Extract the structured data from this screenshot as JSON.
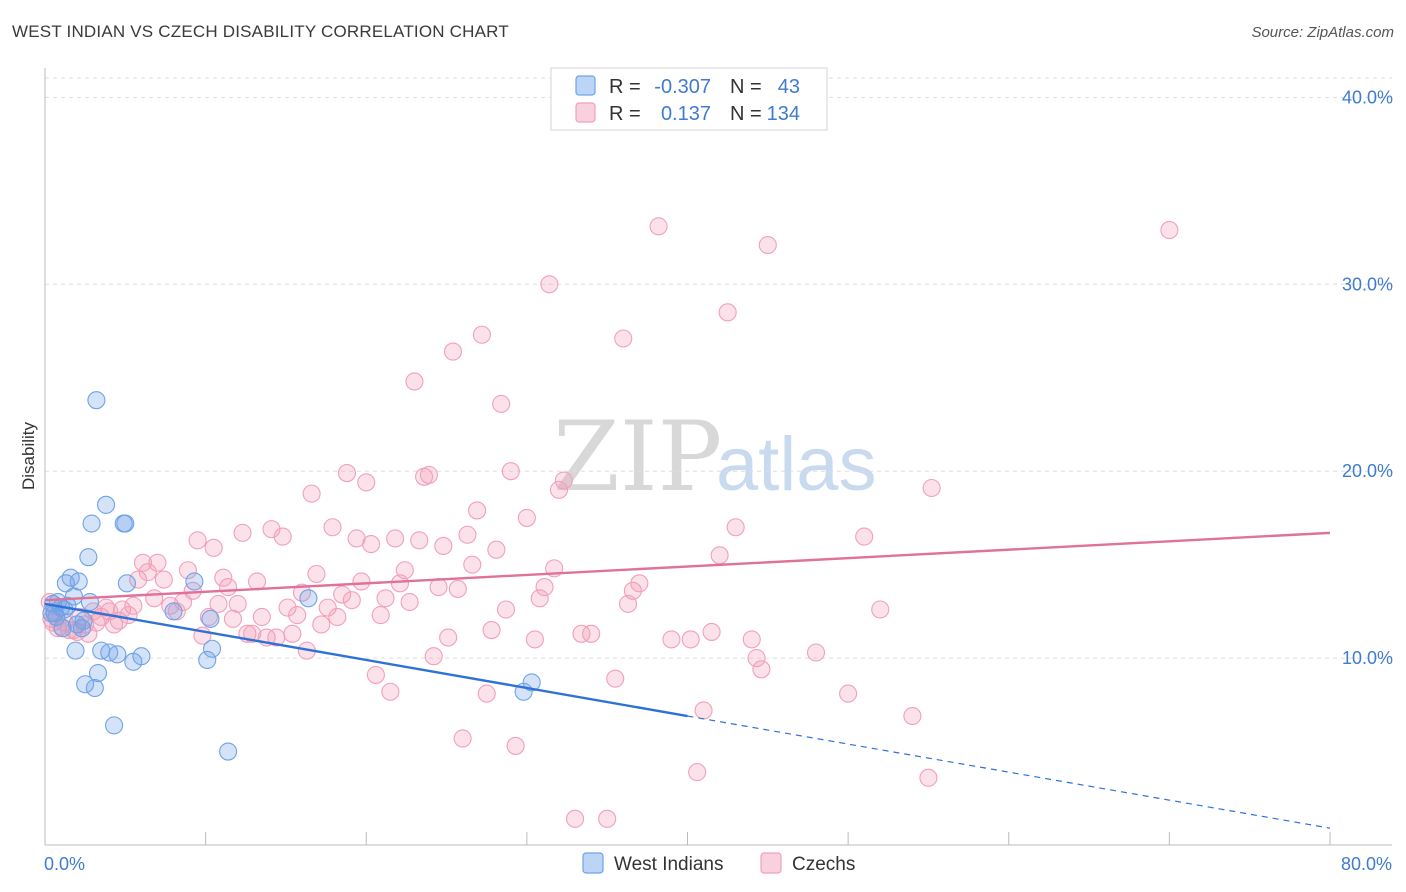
{
  "title": "WEST INDIAN VS CZECH DISABILITY CORRELATION CHART",
  "source": "Source: ZipAtlas.com",
  "watermark": {
    "zip": "ZIP",
    "atlas": "atlas"
  },
  "colors": {
    "blue": "#6fa3e8",
    "blue_line": "#2f72d6",
    "pink": "#f2a0b8",
    "pink_line": "#e0719a",
    "tick_text": "#3f7bd0",
    "grid": "#dddddd"
  },
  "legend": {
    "rows": [
      {
        "r_label": "R =",
        "r_value": "-0.307",
        "n_label": "N =",
        "n_value": "43"
      },
      {
        "r_label": "R =",
        "r_value": "0.137",
        "n_label": "N =",
        "n_value": "134"
      }
    ]
  },
  "bottom_legend": [
    "West Indians",
    "Czechs"
  ],
  "chart_data": {
    "type": "scatter",
    "title": "WEST INDIAN VS CZECH DISABILITY CORRELATION CHART",
    "xlabel": "",
    "ylabel": "Disability",
    "xlim": [
      0,
      80
    ],
    "ylim": [
      0,
      42
    ],
    "x_tick_labels": [
      "0.0%",
      "80.0%"
    ],
    "y_ticks": [
      10,
      20,
      30,
      40
    ],
    "y_tick_labels": [
      "10.0%",
      "20.0%",
      "30.0%",
      "40.0%"
    ],
    "grid": true,
    "legend_position": "top-center",
    "series": [
      {
        "name": "West Indians",
        "color": "#6fa3e8",
        "r": -0.307,
        "n": 43,
        "trend": {
          "x": [
            0,
            40
          ],
          "y": [
            12.9,
            6.9
          ],
          "dashed_extension": {
            "x": [
              40,
              80
            ],
            "y": [
              6.9,
              0.9
            ]
          }
        },
        "points": [
          [
            0.5,
            12.9
          ],
          [
            0.6,
            12.4
          ],
          [
            0.7,
            12.2
          ],
          [
            0.8,
            13.0
          ],
          [
            1.0,
            12.7
          ],
          [
            1.1,
            11.6
          ],
          [
            1.3,
            14.0
          ],
          [
            1.4,
            12.8
          ],
          [
            1.6,
            14.3
          ],
          [
            1.8,
            13.3
          ],
          [
            1.9,
            10.4
          ],
          [
            2.1,
            14.1
          ],
          [
            2.3,
            11.6
          ],
          [
            2.4,
            12.0
          ],
          [
            2.5,
            8.6
          ],
          [
            2.7,
            15.4
          ],
          [
            2.8,
            13.0
          ],
          [
            2.9,
            17.2
          ],
          [
            3.1,
            8.4
          ],
          [
            3.2,
            23.8
          ],
          [
            3.3,
            9.2
          ],
          [
            3.5,
            10.4
          ],
          [
            3.8,
            18.2
          ],
          [
            4.0,
            10.3
          ],
          [
            4.3,
            6.4
          ],
          [
            4.5,
            10.2
          ],
          [
            4.9,
            17.2
          ],
          [
            5.0,
            17.2
          ],
          [
            5.1,
            14.0
          ],
          [
            5.5,
            9.8
          ],
          [
            6.0,
            10.1
          ],
          [
            8.0,
            12.5
          ],
          [
            9.3,
            14.1
          ],
          [
            10.1,
            9.9
          ],
          [
            10.3,
            12.1
          ],
          [
            10.4,
            10.5
          ],
          [
            11.4,
            5.0
          ],
          [
            16.4,
            13.2
          ],
          [
            29.8,
            8.2
          ],
          [
            30.3,
            8.7
          ],
          [
            0.4,
            12.4
          ],
          [
            1.2,
            12.6
          ],
          [
            2.0,
            11.8
          ]
        ]
      },
      {
        "name": "Czechs",
        "color": "#f2a0b8",
        "r": 0.137,
        "n": 134,
        "trend": {
          "x": [
            0,
            80
          ],
          "y": [
            13.1,
            16.7
          ]
        },
        "points": [
          [
            0.3,
            13.0
          ],
          [
            0.4,
            12.1
          ],
          [
            0.5,
            11.9
          ],
          [
            0.6,
            12.5
          ],
          [
            0.8,
            11.6
          ],
          [
            1.0,
            11.7
          ],
          [
            1.2,
            11.9
          ],
          [
            1.5,
            11.5
          ],
          [
            1.8,
            11.5
          ],
          [
            2.0,
            11.4
          ],
          [
            2.2,
            12.2
          ],
          [
            2.5,
            11.8
          ],
          [
            2.7,
            11.3
          ],
          [
            3.0,
            12.5
          ],
          [
            3.2,
            11.9
          ],
          [
            3.5,
            12.2
          ],
          [
            3.8,
            12.7
          ],
          [
            4.0,
            12.5
          ],
          [
            4.3,
            11.8
          ],
          [
            4.6,
            12.0
          ],
          [
            4.8,
            12.6
          ],
          [
            5.2,
            12.3
          ],
          [
            5.5,
            12.8
          ],
          [
            5.8,
            14.2
          ],
          [
            6.1,
            15.1
          ],
          [
            6.4,
            14.6
          ],
          [
            6.8,
            13.2
          ],
          [
            7.0,
            15.1
          ],
          [
            7.4,
            14.2
          ],
          [
            7.8,
            12.8
          ],
          [
            8.2,
            12.5
          ],
          [
            8.6,
            13.0
          ],
          [
            8.9,
            14.7
          ],
          [
            9.2,
            13.6
          ],
          [
            9.5,
            16.3
          ],
          [
            9.8,
            11.2
          ],
          [
            10.2,
            12.2
          ],
          [
            10.5,
            15.9
          ],
          [
            10.8,
            12.9
          ],
          [
            11.1,
            14.3
          ],
          [
            11.4,
            13.8
          ],
          [
            11.7,
            12.1
          ],
          [
            12.0,
            12.9
          ],
          [
            12.3,
            16.7
          ],
          [
            12.6,
            11.3
          ],
          [
            12.9,
            11.3
          ],
          [
            13.2,
            14.1
          ],
          [
            13.5,
            12.2
          ],
          [
            13.8,
            11.1
          ],
          [
            14.1,
            16.9
          ],
          [
            14.4,
            11.1
          ],
          [
            14.8,
            16.5
          ],
          [
            15.1,
            12.7
          ],
          [
            15.4,
            11.3
          ],
          [
            15.7,
            12.3
          ],
          [
            16.0,
            13.5
          ],
          [
            16.3,
            10.4
          ],
          [
            16.6,
            18.8
          ],
          [
            16.9,
            14.5
          ],
          [
            17.2,
            11.8
          ],
          [
            17.6,
            12.7
          ],
          [
            17.9,
            17.0
          ],
          [
            18.2,
            12.2
          ],
          [
            18.5,
            13.4
          ],
          [
            18.8,
            19.9
          ],
          [
            19.1,
            13.1
          ],
          [
            19.4,
            16.4
          ],
          [
            19.7,
            14.1
          ],
          [
            20.0,
            19.4
          ],
          [
            20.3,
            16.1
          ],
          [
            20.6,
            9.1
          ],
          [
            20.9,
            12.3
          ],
          [
            21.2,
            13.2
          ],
          [
            21.5,
            8.2
          ],
          [
            21.8,
            16.4
          ],
          [
            22.1,
            14.0
          ],
          [
            22.4,
            14.7
          ],
          [
            22.7,
            13.0
          ],
          [
            23.0,
            24.8
          ],
          [
            23.3,
            16.3
          ],
          [
            23.6,
            19.7
          ],
          [
            23.9,
            19.8
          ],
          [
            24.2,
            10.1
          ],
          [
            24.5,
            13.8
          ],
          [
            24.8,
            16.0
          ],
          [
            25.1,
            11.1
          ],
          [
            25.4,
            26.4
          ],
          [
            25.7,
            13.7
          ],
          [
            26.0,
            5.7
          ],
          [
            26.3,
            16.6
          ],
          [
            26.6,
            15.0
          ],
          [
            26.9,
            17.9
          ],
          [
            27.2,
            27.3
          ],
          [
            27.5,
            8.1
          ],
          [
            27.8,
            11.5
          ],
          [
            28.1,
            15.8
          ],
          [
            28.4,
            23.6
          ],
          [
            28.7,
            12.6
          ],
          [
            29.0,
            20.0
          ],
          [
            29.3,
            5.3
          ],
          [
            30.0,
            17.5
          ],
          [
            30.5,
            11.0
          ],
          [
            30.8,
            13.2
          ],
          [
            31.1,
            13.8
          ],
          [
            31.4,
            30.0
          ],
          [
            31.7,
            14.8
          ],
          [
            32.0,
            19.0
          ],
          [
            32.3,
            19.5
          ],
          [
            33.0,
            1.4
          ],
          [
            33.4,
            11.3
          ],
          [
            34.0,
            11.3
          ],
          [
            35.0,
            1.4
          ],
          [
            35.5,
            8.9
          ],
          [
            36.0,
            27.1
          ],
          [
            36.3,
            12.9
          ],
          [
            36.6,
            13.6
          ],
          [
            37.0,
            14.0
          ],
          [
            38.2,
            33.1
          ],
          [
            39.0,
            11.0
          ],
          [
            40.2,
            11.0
          ],
          [
            40.6,
            3.9
          ],
          [
            41.0,
            7.2
          ],
          [
            41.5,
            11.4
          ],
          [
            42.0,
            15.5
          ],
          [
            42.5,
            28.5
          ],
          [
            43.0,
            17.0
          ],
          [
            44.0,
            11.0
          ],
          [
            44.3,
            10.0
          ],
          [
            44.6,
            9.4
          ],
          [
            45.0,
            32.1
          ],
          [
            48.0,
            10.3
          ],
          [
            50.0,
            8.1
          ],
          [
            51.0,
            16.5
          ],
          [
            52.0,
            12.6
          ],
          [
            54.0,
            6.9
          ],
          [
            55.0,
            3.6
          ],
          [
            55.2,
            19.1
          ],
          [
            70.0,
            32.9
          ]
        ]
      }
    ]
  }
}
